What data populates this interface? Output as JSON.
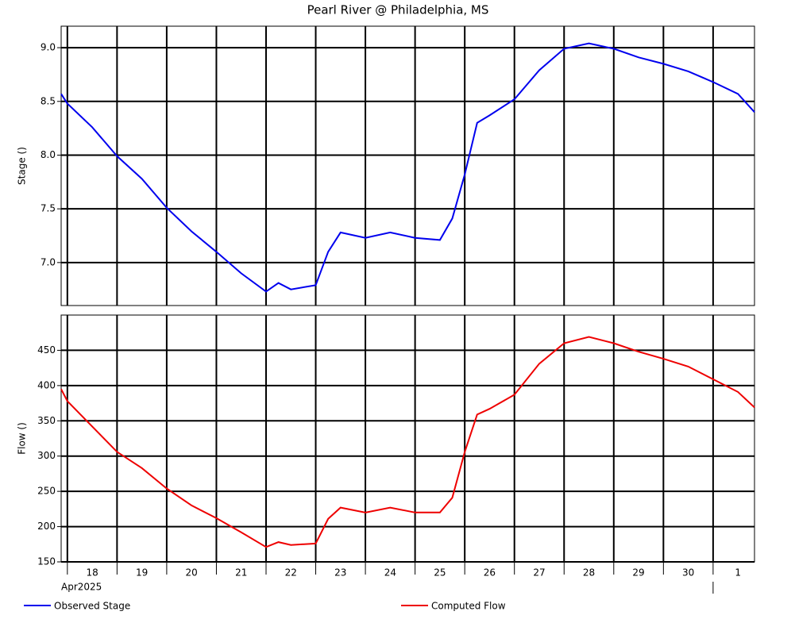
{
  "chart_data": [
    {
      "type": "line",
      "title": "Pearl River @ Philadelphia, MS",
      "ylabel": "Stage ()",
      "x": [
        "2025-04-17T21:00",
        "2025-04-18T00:00",
        "2025-04-18T12:00",
        "2025-04-19T00:00",
        "2025-04-19T12:00",
        "2025-04-20T00:00",
        "2025-04-20T12:00",
        "2025-04-21T00:00",
        "2025-04-21T12:00",
        "2025-04-22T00:00",
        "2025-04-22T06:00",
        "2025-04-22T12:00",
        "2025-04-23T00:00",
        "2025-04-23T06:00",
        "2025-04-23T12:00",
        "2025-04-24T00:00",
        "2025-04-24T12:00",
        "2025-04-25T00:00",
        "2025-04-25T12:00",
        "2025-04-25T18:00",
        "2025-04-26T00:00",
        "2025-04-26T06:00",
        "2025-04-26T12:00",
        "2025-04-27T00:00",
        "2025-04-27T12:00",
        "2025-04-28T00:00",
        "2025-04-28T12:00",
        "2025-04-29T00:00",
        "2025-04-29T12:00",
        "2025-04-30T00:00",
        "2025-04-30T12:00",
        "2025-05-01T00:00",
        "2025-05-01T12:00",
        "2025-05-01T20:00"
      ],
      "series": [
        {
          "name": "Observed Stage",
          "color": "#0000ee",
          "values": [
            8.57,
            8.48,
            8.26,
            7.99,
            7.78,
            7.51,
            7.29,
            7.1,
            6.9,
            6.73,
            6.81,
            6.75,
            6.79,
            7.1,
            7.28,
            7.23,
            7.28,
            7.23,
            7.21,
            7.41,
            7.82,
            8.3,
            8.37,
            8.52,
            8.79,
            8.99,
            9.04,
            8.99,
            8.91,
            8.85,
            8.78,
            8.68,
            8.57,
            8.4
          ]
        }
      ],
      "xlim": [
        "2025-04-17T21:00",
        "2025-05-01T20:00"
      ],
      "xticks": [
        "2025-04-18T00:00",
        "2025-04-19T00:00",
        "2025-04-20T00:00",
        "2025-04-21T00:00",
        "2025-04-22T00:00",
        "2025-04-23T00:00",
        "2025-04-24T00:00",
        "2025-04-25T00:00",
        "2025-04-26T00:00",
        "2025-04-27T00:00",
        "2025-04-28T00:00",
        "2025-04-29T00:00",
        "2025-04-30T00:00",
        "2025-05-01T00:00"
      ],
      "ylim": [
        6.6,
        9.2
      ],
      "yticks": [
        {
          "value": 7,
          "label": "7.0"
        },
        7.5,
        {
          "value": 8,
          "label": "8.0"
        },
        8.5,
        {
          "value": 9,
          "label": "9.0"
        }
      ],
      "grid": true
    },
    {
      "type": "line",
      "ylabel": "Flow ()",
      "x": [
        "2025-04-17T21:00",
        "2025-04-18T00:00",
        "2025-04-18T12:00",
        "2025-04-19T00:00",
        "2025-04-19T12:00",
        "2025-04-20T00:00",
        "2025-04-20T12:00",
        "2025-04-21T00:00",
        "2025-04-21T12:00",
        "2025-04-22T00:00",
        "2025-04-22T06:00",
        "2025-04-22T12:00",
        "2025-04-23T00:00",
        "2025-04-23T06:00",
        "2025-04-23T12:00",
        "2025-04-24T00:00",
        "2025-04-24T12:00",
        "2025-04-25T00:00",
        "2025-04-25T12:00",
        "2025-04-25T18:00",
        "2025-04-26T00:00",
        "2025-04-26T06:00",
        "2025-04-26T12:00",
        "2025-04-27T00:00",
        "2025-04-27T12:00",
        "2025-04-28T00:00",
        "2025-04-28T12:00",
        "2025-04-29T00:00",
        "2025-04-29T12:00",
        "2025-04-30T00:00",
        "2025-04-30T12:00",
        "2025-05-01T00:00",
        "2025-05-01T12:00",
        "2025-05-01T20:00"
      ],
      "series": [
        {
          "name": "Computed Flow",
          "color": "#ee0000",
          "values": [
            395,
            378,
            342,
            306,
            283,
            254,
            230,
            212,
            192,
            171,
            178,
            174,
            176,
            211,
            227,
            220,
            227,
            220,
            220,
            241,
            306,
            359,
            367,
            387,
            431,
            460,
            469,
            460,
            448,
            438,
            427,
            409,
            391,
            369
          ]
        }
      ],
      "xlim": [
        "2025-04-17T21:00",
        "2025-05-01T20:00"
      ],
      "xticks": [
        "2025-04-18T00:00",
        "2025-04-19T00:00",
        "2025-04-20T00:00",
        "2025-04-21T00:00",
        "2025-04-22T00:00",
        "2025-04-23T00:00",
        "2025-04-24T00:00",
        "2025-04-25T00:00",
        "2025-04-26T00:00",
        "2025-04-27T00:00",
        "2025-04-28T00:00",
        "2025-04-29T00:00",
        "2025-04-30T00:00",
        "2025-05-01T00:00"
      ],
      "xticklabels": [
        {
          "value": "2025-04-18T12:00",
          "label": "18"
        },
        {
          "value": "2025-04-19T12:00",
          "label": "19"
        },
        {
          "value": "2025-04-20T12:00",
          "label": "20"
        },
        {
          "value": "2025-04-21T12:00",
          "label": "21"
        },
        {
          "value": "2025-04-22T12:00",
          "label": "22"
        },
        {
          "value": "2025-04-23T12:00",
          "label": "23"
        },
        {
          "value": "2025-04-24T12:00",
          "label": "24"
        },
        {
          "value": "2025-04-25T12:00",
          "label": "25"
        },
        {
          "value": "2025-04-26T12:00",
          "label": "26"
        },
        {
          "value": "2025-04-27T12:00",
          "label": "27"
        },
        {
          "value": "2025-04-28T12:00",
          "label": "28"
        },
        {
          "value": "2025-04-29T12:00",
          "label": "29"
        },
        {
          "value": "2025-04-30T12:00",
          "label": "30"
        },
        {
          "value": "2025-05-01T12:00",
          "label": "1"
        }
      ],
      "month_label": "Apr2025",
      "ylim": [
        150,
        500
      ],
      "yticks": [
        150,
        200,
        250,
        300,
        350,
        400,
        450
      ],
      "grid": true
    }
  ]
}
